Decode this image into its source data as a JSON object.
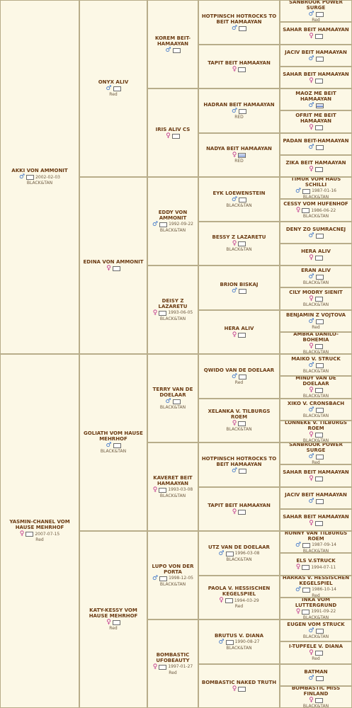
{
  "dogs": {
    "d1": {
      "name": "AKKI VON AMMONIT",
      "sex": "m",
      "date": "2002-02-03",
      "color": "BLACK&TAN"
    },
    "d2": {
      "name": "ONYX ALIV",
      "sex": "m",
      "color": "Red"
    },
    "d3": {
      "name": "KOREM BEIT-HAMAAYAN",
      "sex": "m"
    },
    "d4": {
      "name": "HOTPINSCH HOTROCKS TO BEIT HAMAAYAN",
      "sex": "m"
    },
    "d5": {
      "name": "SANBROOK POWER SURGE",
      "sex": "m",
      "color": "Red"
    },
    "d6": {
      "name": "SAHAR BEIT HAMAAYAN",
      "sex": "f"
    },
    "d7": {
      "name": "TAPIT BEIT HAMAAYAN",
      "sex": "f"
    },
    "d8": {
      "name": "JACIV BEIT HAMAAYAN",
      "sex": "m"
    },
    "d9": {
      "name": "SAHAR BEIT HAMAAYAN",
      "sex": "f"
    },
    "d10": {
      "name": "IRIS ALIV CS",
      "sex": "f"
    },
    "d11": {
      "name": "HADRAN BEIT HAMAAYAN",
      "sex": "m",
      "color": "RED"
    },
    "d12": {
      "name": "MAOZ ME BEIT HAMAAYAN",
      "sex": "m",
      "flag": "il"
    },
    "d13": {
      "name": "OFRIT ME BEIT HAMAAYAN",
      "sex": "f"
    },
    "d14": {
      "name": "NADYA BEIT HAMAAYAN",
      "sex": "f",
      "flag": "il",
      "color": "RED"
    },
    "d15": {
      "name": "PADAN BEIT-HAMAAYAN",
      "sex": "m"
    },
    "d16": {
      "name": "ZIKA BEIT HAMAAYAN",
      "sex": "f"
    },
    "d17": {
      "name": "EDINA VON AMMONIT",
      "sex": "f"
    },
    "d18": {
      "name": "EDDY VON AMMONIT",
      "sex": "m",
      "date": "1992-09-22",
      "color": "BLACK&TAN"
    },
    "d19": {
      "name": "EYK LOEWENSTEIN",
      "sex": "m",
      "color": "BLACK&TAN"
    },
    "d20": {
      "name": "TIMUR VOM HAUS SCHILLI",
      "sex": "m",
      "date": "1987-01-16",
      "color": "BLACK&TAN"
    },
    "d21": {
      "name": "CESSY VOM HUFENHOF",
      "sex": "f",
      "date": "1986-06-22",
      "color": "BLACK&TAN"
    },
    "d22": {
      "name": "BESSY Z LAZARETU",
      "sex": "f",
      "color": "BLACK&TAN"
    },
    "d23": {
      "name": "DENY ZO SUMRACNEJ",
      "sex": "m"
    },
    "d24": {
      "name": "HERA ALIV",
      "sex": "f"
    },
    "d25": {
      "name": "DEISY Z LAZARETU",
      "sex": "f",
      "date": "1993-06-05",
      "color": "BLACK&TAN"
    },
    "d26": {
      "name": "BRION BISKAJ",
      "sex": "m"
    },
    "d27": {
      "name": "ERAN ALIV",
      "sex": "m",
      "color": "BLACK&TAN"
    },
    "d28": {
      "name": "CILY MODRY SIENIT",
      "sex": "f",
      "color": "BLACK&TAN"
    },
    "d29": {
      "name": "HERA ALIV",
      "sex": "f"
    },
    "d30": {
      "name": "BENJAMIN Z VOJTOVA",
      "sex": "m",
      "color": "Red"
    },
    "d31": {
      "name": "AMBRA DANILO-BOHEMIA",
      "sex": "f",
      "color": "BLACK&TAN"
    },
    "d32": {
      "name": "YASMIN-CHANEL VOM HAUSE MEHRHOF",
      "sex": "f",
      "date": "2007-07-15",
      "color": "Red"
    },
    "d33": {
      "name": "GOLIATH VOM HAUSE MEHRHOF",
      "sex": "m",
      "color": "BLACK&TAN"
    },
    "d34": {
      "name": "TERRY VAN DE DOELAAR",
      "sex": "m",
      "color": "BLACK&TAN"
    },
    "d35": {
      "name": "QWIDO VAN DE DOELAAR",
      "sex": "m",
      "color": "Red"
    },
    "d36": {
      "name": "MAIKO V. STRUCK",
      "sex": "m",
      "color": "BLACK&TAN"
    },
    "d37": {
      "name": "MINDY VAN DE DOELAAR",
      "sex": "f",
      "color": "BLACK&TAN"
    },
    "d38": {
      "name": "XELANKA V. TILBURGS ROEM",
      "sex": "f",
      "color": "BLACK&TAN"
    },
    "d39": {
      "name": "XIKO V. CRONSBACH",
      "sex": "m",
      "color": "BLACK&TAN"
    },
    "d40": {
      "name": "LONNEKE V. TILBURGS ROEM",
      "sex": "f",
      "color": "BLACK&TAN"
    },
    "d41": {
      "name": "KAVERET BEIT HAMAAYAN",
      "sex": "f",
      "date": "1993-03-08",
      "color": "BLACK&TAN"
    },
    "d42": {
      "name": "HOTPINSCH HOTROCKS TO BEIT HAMAAYAN",
      "sex": "m"
    },
    "d43": {
      "name": "SANBROOK POWER SURGE",
      "sex": "m",
      "color": "Red"
    },
    "d44": {
      "name": "SAHAR BEIT HAMAAYAN",
      "sex": "f"
    },
    "d45": {
      "name": "TAPIT BEIT HAMAAYAN",
      "sex": "f"
    },
    "d46": {
      "name": "JACIV BEIT HAMAAYAN",
      "sex": "m"
    },
    "d47": {
      "name": "SAHAR BEIT HAMAAYAN",
      "sex": "f"
    },
    "d48": {
      "name": "KATY-KESSY VOM HAUSE MEHRHOF",
      "sex": "f",
      "color": "Red"
    },
    "d49": {
      "name": "LUPO VON DER PORTA",
      "sex": "m",
      "date": "1998-12-05",
      "color": "BLACK&TAN"
    },
    "d50": {
      "name": "UTZ VAN DE DOELAAR",
      "sex": "m",
      "date": "1996-03-08",
      "color": "BLACK&TAN"
    },
    "d51": {
      "name": "RONNY VAN TILBURGS ROEM",
      "sex": "m",
      "date": "1987-09-14",
      "color": "BLACK&TAN"
    },
    "d52": {
      "name": "ELS V.STRUCK",
      "sex": "f",
      "date": "1994-07-11"
    },
    "d53": {
      "name": "PAOLA V. HESSISCHEN KEGELSPIEL",
      "sex": "f",
      "date": "1994-03-29",
      "color": "Red"
    },
    "d54": {
      "name": "HARRAS V. HESSISCHEN KEGELSPIEL",
      "sex": "m",
      "date": "1986-10-14",
      "color": "Red"
    },
    "d55": {
      "name": "INKA VOM LUTTERGRUND",
      "sex": "f",
      "date": "1991-09-22",
      "color": "BLACK&TAN"
    },
    "d56": {
      "name": "BOMBASTIC UFOBEAUTY",
      "sex": "f",
      "date": "1997-01-27",
      "color": "Red"
    },
    "d57": {
      "name": "BRUTUS V. DIANA",
      "sex": "m",
      "date": "1990-08-27",
      "color": "BLACK&TAN"
    },
    "d58": {
      "name": "EUGEN VOM STRUCK",
      "sex": "m",
      "color": "BLACK&TAN"
    },
    "d59": {
      "name": "I-TUPFELE V. DIANA",
      "sex": "f",
      "color": "Red"
    },
    "d60": {
      "name": "BOMBASTIC NAKED TRUTH",
      "sex": "f"
    },
    "d61": {
      "name": "BATMAN",
      "sex": "m"
    },
    "d62": {
      "name": "BOMBASTIC MISS FINLAND",
      "sex": "f",
      "color": "BLACK&TAN"
    }
  },
  "icons": {
    "male": "male-symbol-icon",
    "female": "female-symbol-icon",
    "male_glyph": "♂",
    "female_glyph": "♀"
  },
  "colors": {
    "male": "#3b73c9",
    "female": "#c0348b",
    "name": "#6a3a12",
    "background": "#f8f2d8",
    "border": "#b8ad8a"
  }
}
